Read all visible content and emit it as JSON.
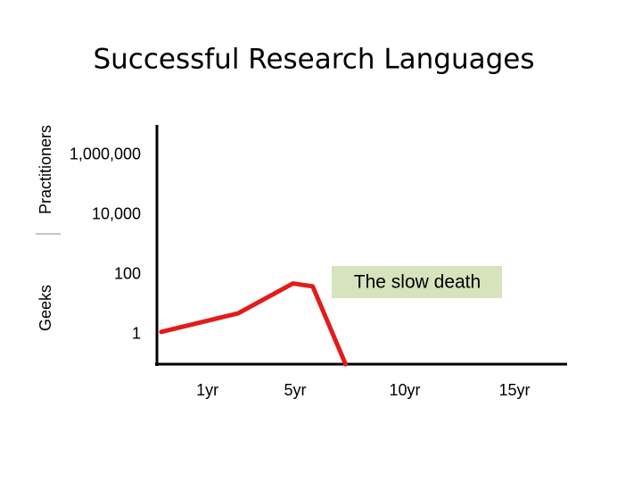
{
  "chart_data": {
    "type": "line",
    "title": "Successful Research Languages",
    "y_group_labels": [
      "Practitioners",
      "Geeks"
    ],
    "annotation": "The slow death",
    "x": [
      -1.1,
      2.4,
      4.9,
      5.8,
      7.3
    ],
    "values": [
      1.2,
      5,
      50,
      40,
      0.1
    ],
    "color": "#e31b1b",
    "xlim": [
      -1.3,
      17.4
    ],
    "xticks": [
      {
        "value": 1,
        "label": "1yr"
      },
      {
        "value": 5,
        "label": "5yr"
      },
      {
        "value": 10,
        "label": "10yr"
      },
      {
        "value": 15,
        "label": "15yr"
      }
    ],
    "ylim": [
      0.1,
      10000000
    ],
    "yscale": "log",
    "yticks": [
      {
        "value": 1000000,
        "label": "1,000,000"
      },
      {
        "value": 10000,
        "label": "10,000"
      },
      100,
      1
    ],
    "grid": false
  }
}
